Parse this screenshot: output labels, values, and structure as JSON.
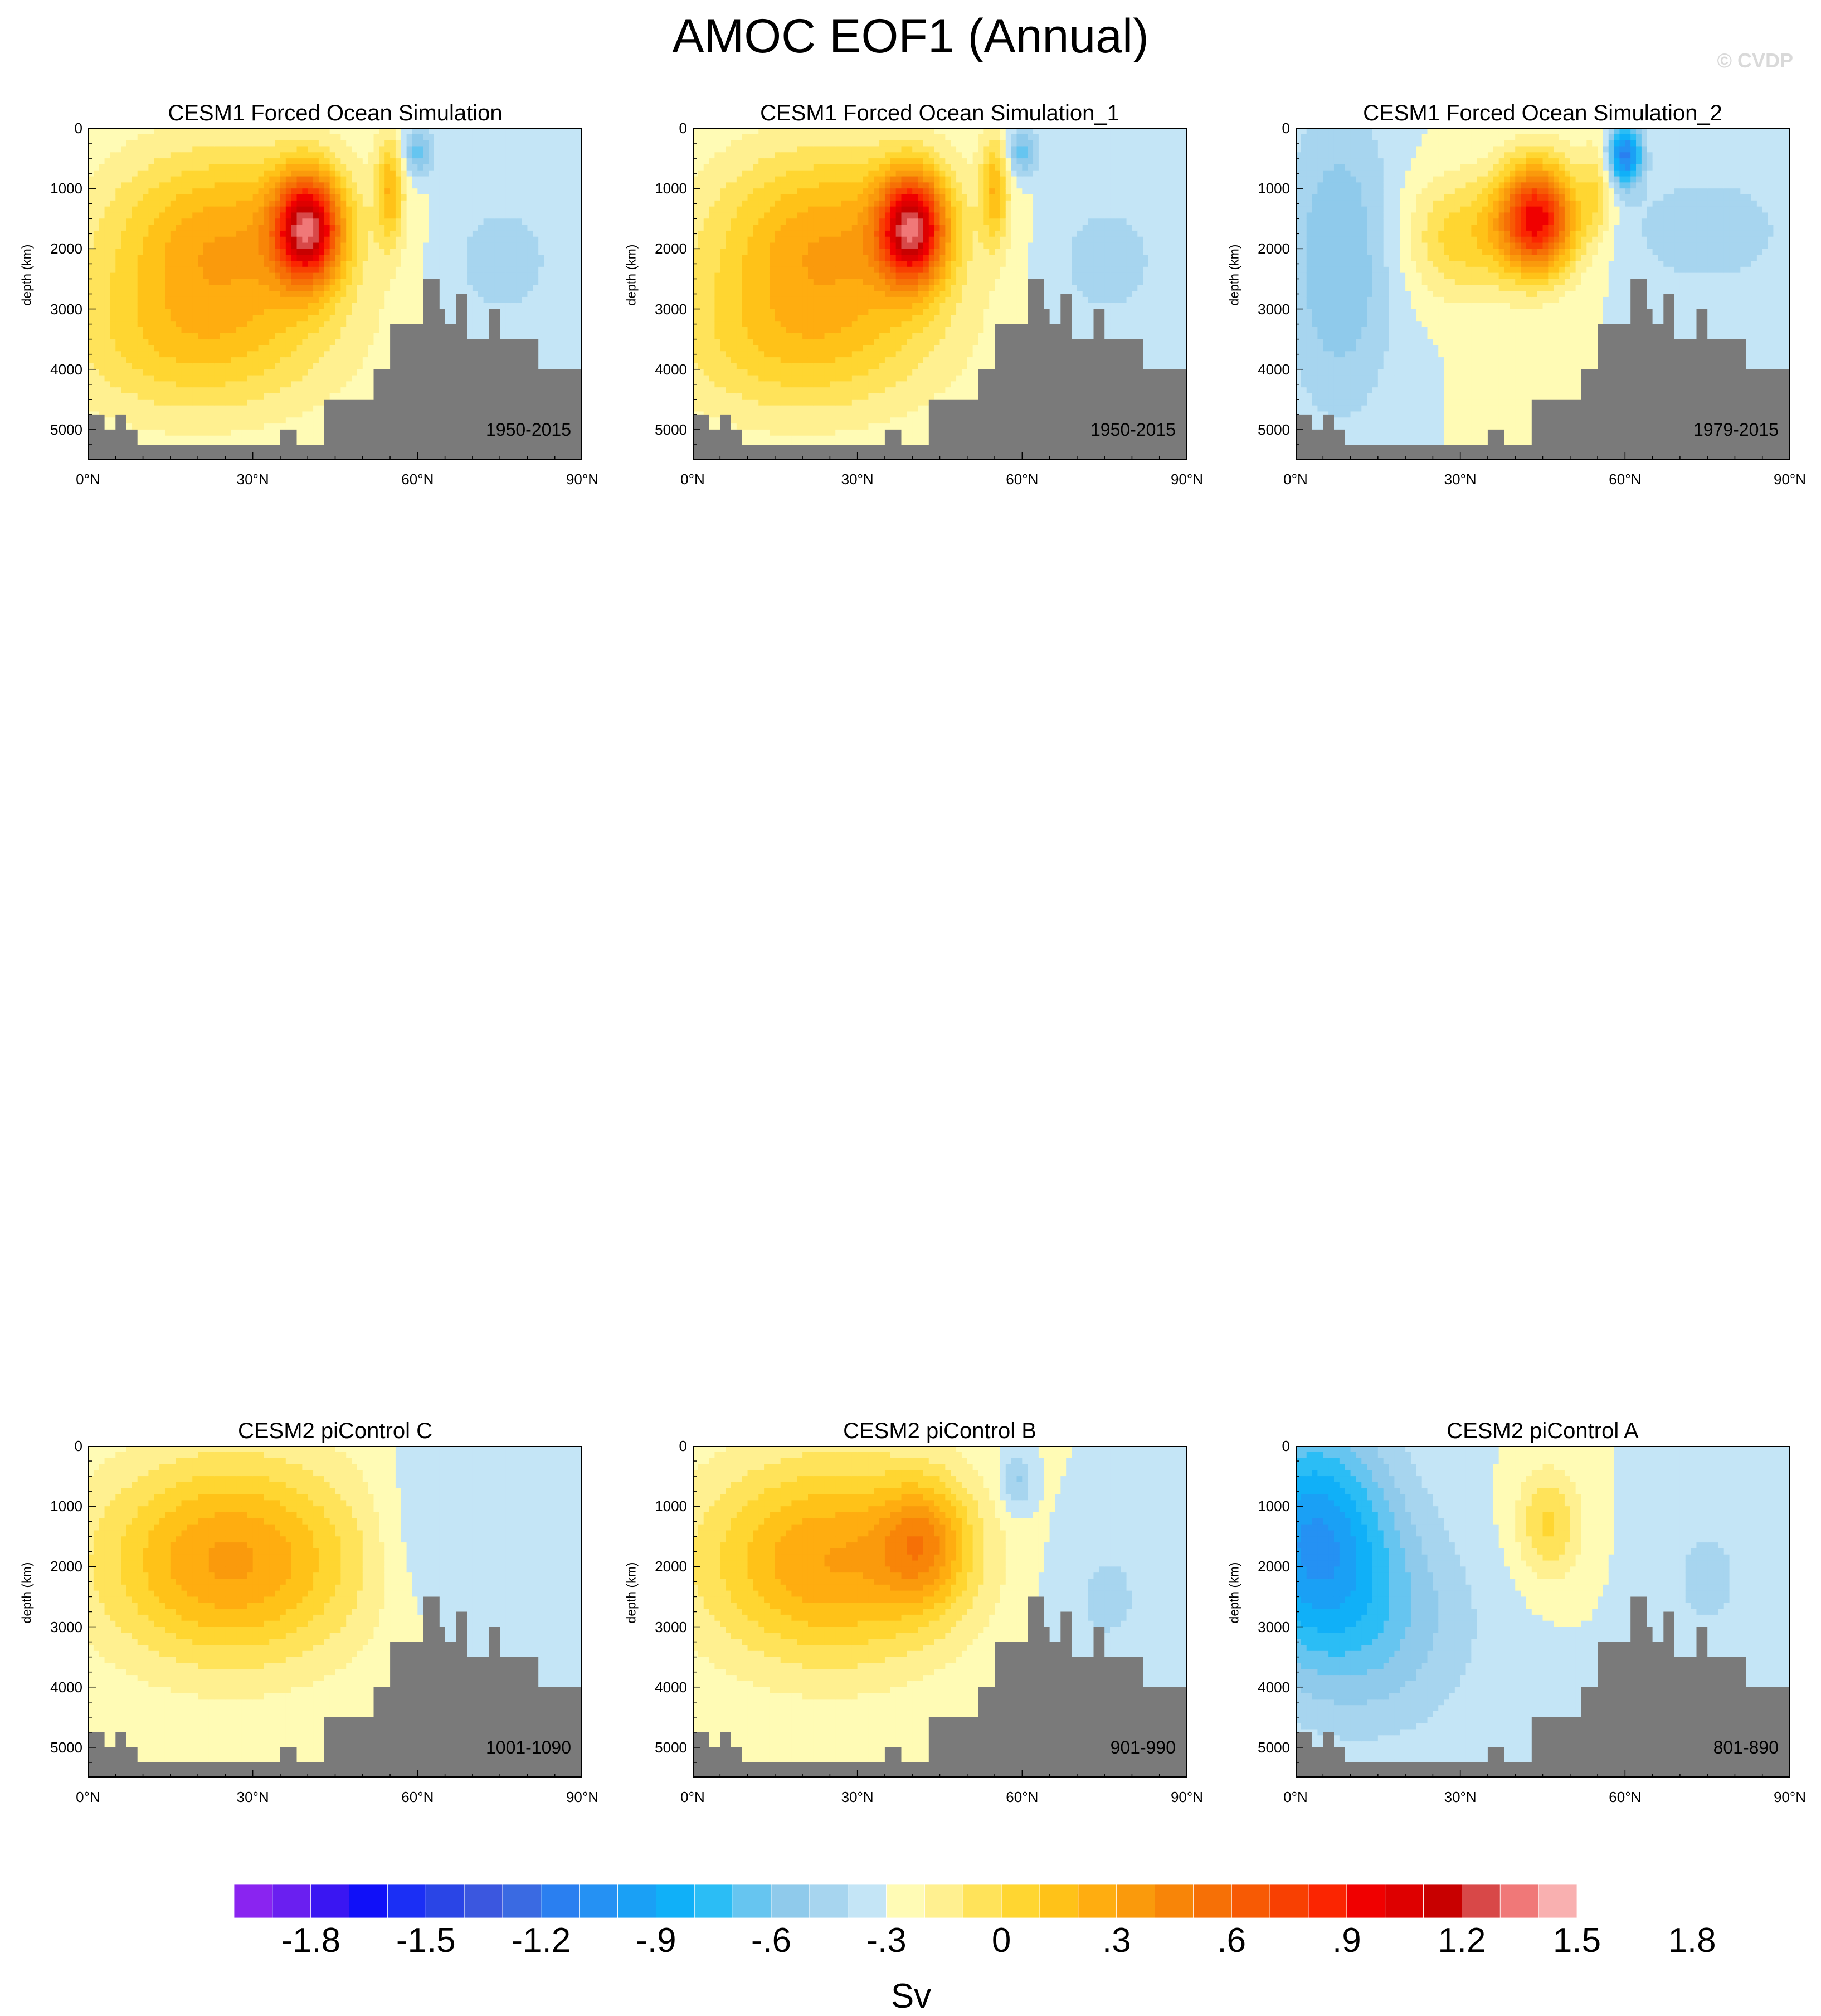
{
  "figure": {
    "title": "AMOC EOF1 (Annual)",
    "watermark": "© CVDP"
  },
  "colorbar": {
    "unit": "Sv",
    "labels": [
      "-1.8",
      "-1.5",
      "-1.2",
      "-.9",
      "-.6",
      "-.3",
      "0",
      ".3",
      ".6",
      ".9",
      "1.2",
      "1.5",
      "1.8"
    ],
    "colors": [
      "#8a24f0",
      "#6a1ff0",
      "#3a16f2",
      "#1010f8",
      "#1b2ff5",
      "#2a45e6",
      "#3b57df",
      "#3a6ae2",
      "#2a7ff0",
      "#2591f3",
      "#1aa0f5",
      "#10b0f8",
      "#2bbdf5",
      "#66c5f0",
      "#8fcaeb",
      "#a7d5ef",
      "#c4e5f6",
      "#fffbb5",
      "#fff090",
      "#ffe35a",
      "#ffd631",
      "#ffc218",
      "#ffad10",
      "#fa9a0c",
      "#f88508",
      "#f67006",
      "#f75a04",
      "#f84002",
      "#fb2501",
      "#f00000",
      "#de0000",
      "#c80000",
      "#d84848",
      "#f07878",
      "#f9b0b0"
    ]
  },
  "panels": [
    {
      "title": "CESM1 Forced Ocean Simulation",
      "period": "1950-2015",
      "ylabel": "depth (km)",
      "yticks": [
        "0",
        "1000",
        "2000",
        "3000",
        "4000",
        "5000"
      ],
      "xticks": [
        "0°N",
        "30°N",
        "60°N",
        "90°N"
      ],
      "pattern": "forced1"
    },
    {
      "title": "CESM1 Forced Ocean Simulation_1",
      "period": "1950-2015",
      "ylabel": "depth (km)",
      "yticks": [
        "0",
        "1000",
        "2000",
        "3000",
        "4000",
        "5000"
      ],
      "xticks": [
        "0°N",
        "30°N",
        "60°N",
        "90°N"
      ],
      "pattern": "forced1"
    },
    {
      "title": "CESM1 Forced Ocean Simulation_2",
      "period": "1979-2015",
      "ylabel": "depth (km)",
      "yticks": [
        "0",
        "1000",
        "2000",
        "3000",
        "4000",
        "5000"
      ],
      "xticks": [
        "0°N",
        "30°N",
        "60°N",
        "90°N"
      ],
      "pattern": "forced2"
    },
    {
      "title": "CESM2 piControl C",
      "period": "1001-1090",
      "ylabel": "depth (km)",
      "yticks": [
        "0",
        "1000",
        "2000",
        "3000",
        "4000",
        "5000"
      ],
      "xticks": [
        "0°N",
        "30°N",
        "60°N",
        "90°N"
      ],
      "pattern": "picC"
    },
    {
      "title": "CESM2 piControl B",
      "period": "901-990",
      "ylabel": "depth (km)",
      "yticks": [
        "0",
        "1000",
        "2000",
        "3000",
        "4000",
        "5000"
      ],
      "xticks": [
        "0°N",
        "30°N",
        "60°N",
        "90°N"
      ],
      "pattern": "picB"
    },
    {
      "title": "CESM2 piControl A",
      "period": "801-890",
      "ylabel": "depth (km)",
      "yticks": [
        "0",
        "1000",
        "2000",
        "3000",
        "4000",
        "5000"
      ],
      "xticks": [
        "0°N",
        "30°N",
        "60°N",
        "90°N"
      ],
      "pattern": "picA"
    }
  ],
  "chart_data": [
    {
      "type": "heatmap",
      "title": "CESM1 Forced Ocean Simulation",
      "subtitle": "1950-2015",
      "xlabel": "",
      "ylabel": "depth (km)",
      "xlim": [
        0,
        90
      ],
      "ylim": [
        5500,
        0
      ],
      "colorbar_unit": "Sv",
      "peak_value": 1.8,
      "peak_location": {
        "lat": 40,
        "depth": 1600
      },
      "notes": "positive overturning cell, strongest 35-45°N near 1500 m; weak negative near 55-65°N upper ocean"
    },
    {
      "type": "heatmap",
      "title": "CESM1 Forced Ocean Simulation_1",
      "subtitle": "1950-2015",
      "xlabel": "",
      "ylabel": "depth (km)",
      "xlim": [
        0,
        90
      ],
      "ylim": [
        5500,
        0
      ],
      "colorbar_unit": "Sv",
      "peak_value": 1.8,
      "peak_location": {
        "lat": 40,
        "depth": 1600
      }
    },
    {
      "type": "heatmap",
      "title": "CESM1 Forced Ocean Simulation_2",
      "subtitle": "1979-2015",
      "xlabel": "",
      "ylabel": "depth (km)",
      "xlim": [
        0,
        90
      ],
      "ylim": [
        5500,
        0
      ],
      "colorbar_unit": "Sv",
      "peak_value": 1.5,
      "peak_location": {
        "lat": 45,
        "depth": 1500
      },
      "min_value": -0.9,
      "min_location": {
        "lat": 60,
        "depth": 400
      }
    },
    {
      "type": "heatmap",
      "title": "CESM2 piControl C",
      "subtitle": "1001-1090",
      "xlabel": "",
      "ylabel": "depth (km)",
      "xlim": [
        0,
        90
      ],
      "ylim": [
        5500,
        0
      ],
      "colorbar_unit": "Sv",
      "peak_value": 0.6,
      "peak_location": {
        "lat": 25,
        "depth": 1700
      }
    },
    {
      "type": "heatmap",
      "title": "CESM2 piControl B",
      "subtitle": "901-990",
      "xlabel": "",
      "ylabel": "depth (km)",
      "xlim": [
        0,
        90
      ],
      "ylim": [
        5500,
        0
      ],
      "colorbar_unit": "Sv",
      "peak_value": 0.9,
      "peak_location": {
        "lat": 42,
        "depth": 1600
      }
    },
    {
      "type": "heatmap",
      "title": "CESM2 piControl A",
      "subtitle": "801-890",
      "xlabel": "",
      "ylabel": "depth (km)",
      "xlim": [
        0,
        90
      ],
      "ylim": [
        5500,
        0
      ],
      "colorbar_unit": "Sv",
      "min_value": -0.6,
      "min_location": {
        "lat": 2,
        "depth": 1400
      },
      "peak_value": 0.3,
      "peak_location": {
        "lat": 47,
        "depth": 1200
      }
    }
  ]
}
